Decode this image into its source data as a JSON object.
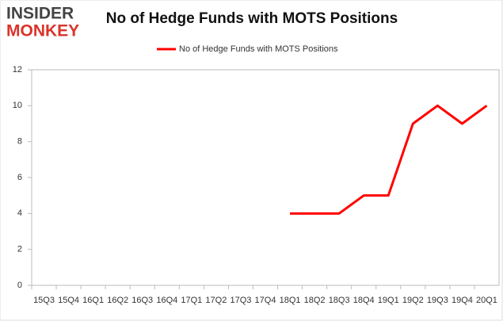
{
  "chart_data": {
    "type": "line",
    "title": "No of Hedge Funds with MOTS Positions",
    "logo": [
      "INSIDER",
      "MONKEY"
    ],
    "categories": [
      "15Q3",
      "15Q4",
      "16Q1",
      "16Q2",
      "16Q3",
      "16Q4",
      "17Q1",
      "17Q2",
      "17Q3",
      "17Q4",
      "18Q1",
      "18Q2",
      "18Q3",
      "18Q4",
      "19Q1",
      "19Q2",
      "19Q3",
      "19Q4",
      "20Q1"
    ],
    "series": [
      {
        "name": "No of Hedge Funds with MOTS Positions",
        "color": "#ff0000",
        "values": [
          null,
          null,
          null,
          null,
          null,
          null,
          null,
          null,
          null,
          null,
          4,
          4,
          4,
          5,
          5,
          9,
          10,
          9,
          10
        ]
      }
    ],
    "ylim": [
      0,
      12
    ],
    "yticks": [
      0,
      2,
      4,
      6,
      8,
      10,
      12
    ],
    "grid": false,
    "legend": "top"
  }
}
